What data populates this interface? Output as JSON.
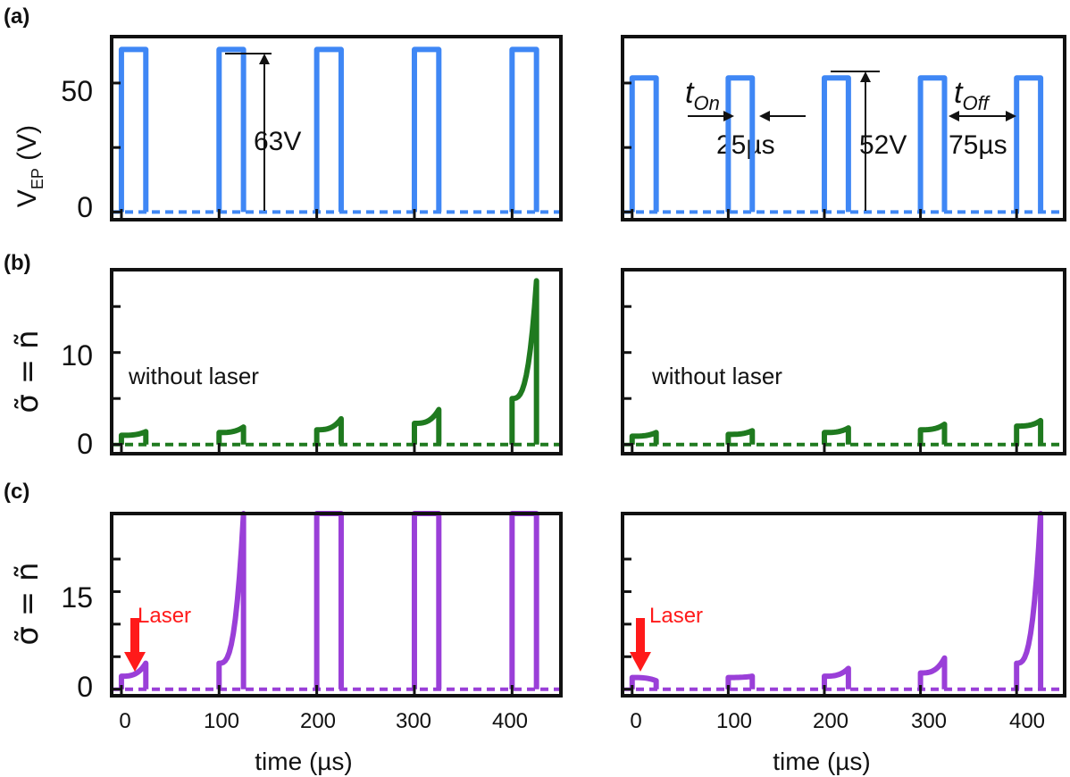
{
  "chart_data": [
    {
      "panel": "(a)",
      "column": "left",
      "type": "line",
      "ylabel": "V",
      "ylabel_sub": "EP",
      "ylabel_unit": "(V)",
      "yticks": [
        "0",
        "50"
      ],
      "ylim": [
        -3,
        68
      ],
      "xlim": [
        -10,
        450
      ],
      "series": [
        {
          "color": "#3f87f5",
          "pulse_starts": [
            0,
            100,
            200,
            300,
            400
          ],
          "width": 25,
          "on_value": 63,
          "off_value": 0
        }
      ],
      "annotations": [
        {
          "text": "63V"
        }
      ]
    },
    {
      "panel": "(a)",
      "column": "right",
      "type": "line",
      "ylim": [
        -3,
        68
      ],
      "xlim": [
        -10,
        450
      ],
      "series": [
        {
          "color": "#3f87f5",
          "pulse_starts": [
            0,
            100,
            200,
            300,
            400
          ],
          "width": 25,
          "on_value": 52,
          "off_value": 0
        }
      ],
      "annotations": [
        {
          "text_main": "t",
          "text_sub": "On"
        },
        {
          "text": "25µs"
        },
        {
          "text": "52V"
        },
        {
          "text_main": "t",
          "text_sub": "Off"
        },
        {
          "text": "75µs"
        }
      ]
    },
    {
      "panel": "(b)",
      "column": "left",
      "type": "line",
      "ylabel": "σ̃ = ñ",
      "yticks": [
        "0",
        "10"
      ],
      "ylim": [
        -1,
        19
      ],
      "xlim": [
        -10,
        450
      ],
      "series": [
        {
          "color": "#1f7a1f",
          "pulse_starts": [
            0,
            100,
            200,
            300,
            400
          ],
          "width": 25,
          "start_values": [
            1.0,
            1.3,
            1.6,
            2.3,
            5.0
          ],
          "end_values": [
            1.4,
            1.9,
            2.8,
            3.8,
            17.8
          ],
          "off_value": 0
        }
      ],
      "annotations": [
        {
          "text": "without laser"
        }
      ]
    },
    {
      "panel": "(b)",
      "column": "right",
      "type": "line",
      "ylim": [
        -1,
        19
      ],
      "xlim": [
        -10,
        450
      ],
      "series": [
        {
          "color": "#1f7a1f",
          "pulse_starts": [
            0,
            100,
            200,
            300,
            400
          ],
          "width": 25,
          "start_values": [
            0.9,
            1.1,
            1.3,
            1.6,
            2.0
          ],
          "end_values": [
            1.3,
            1.5,
            1.8,
            2.2,
            2.6
          ],
          "off_value": 0
        }
      ],
      "annotations": [
        {
          "text": "without laser"
        }
      ]
    },
    {
      "panel": "(c)",
      "column": "left",
      "type": "line",
      "ylabel": "σ̃ = ñ",
      "yticks": [
        "0",
        "15"
      ],
      "ylim": [
        -1,
        27
      ],
      "xlim": [
        -10,
        450
      ],
      "xlabel": "time (µs)",
      "xticks": [
        "0",
        "100",
        "200",
        "300",
        "400"
      ],
      "series": [
        {
          "color": "#9a3fd8",
          "pulse_starts": [
            0,
            100,
            200,
            300,
            400
          ],
          "width": 25,
          "start_values": [
            2.0,
            4.0,
            27,
            27,
            27
          ],
          "end_values": [
            4.0,
            27,
            27,
            27,
            27
          ],
          "off_value": 0
        }
      ],
      "annotations": [
        {
          "text": "Laser",
          "arrow_time": 10
        }
      ]
    },
    {
      "panel": "(c)",
      "column": "right",
      "type": "line",
      "ylim": [
        -1,
        27
      ],
      "xlim": [
        -10,
        450
      ],
      "xlabel": "time (µs)",
      "xticks": [
        "0",
        "100",
        "200",
        "300",
        "400"
      ],
      "series": [
        {
          "color": "#9a3fd8",
          "pulse_starts": [
            0,
            100,
            200,
            300,
            400
          ],
          "width": 25,
          "start_values": [
            1.8,
            1.8,
            2.0,
            2.5,
            4.0
          ],
          "end_values": [
            1.3,
            2.0,
            3.2,
            4.8,
            27
          ],
          "off_value": 0
        }
      ],
      "annotations": [
        {
          "text": "Laser",
          "arrow_time": 10
        }
      ]
    }
  ],
  "panel_labels": [
    "(a)",
    "(b)",
    "(c)"
  ],
  "colors": {
    "blue": "#3f87f5",
    "green": "#1f7a1f",
    "purple": "#9a3fd8",
    "laser": "#ff1a1a"
  }
}
